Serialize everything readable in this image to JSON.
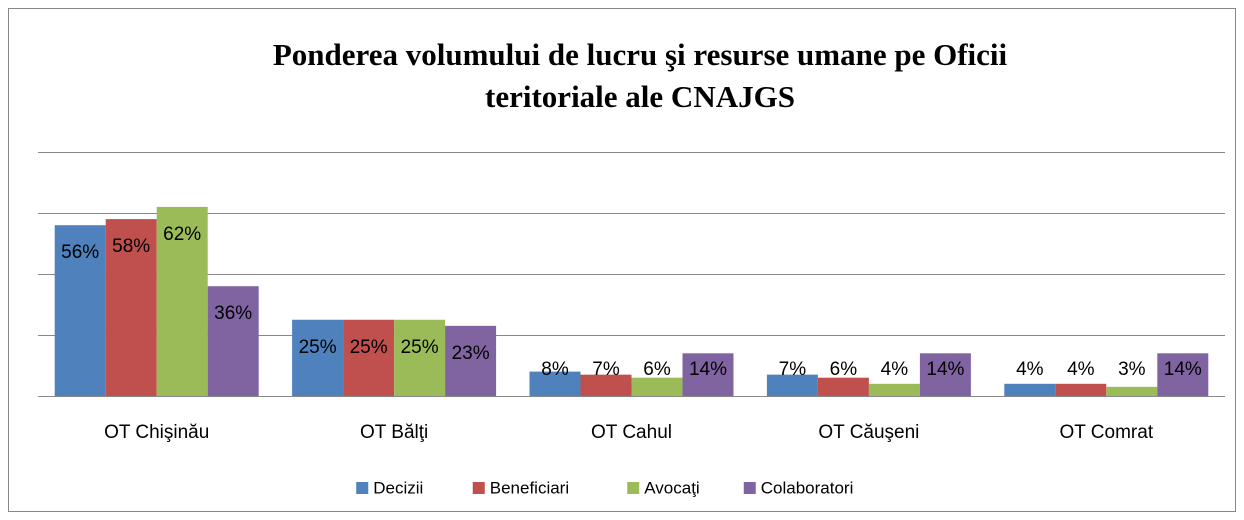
{
  "chart_data": {
    "type": "bar",
    "title": [
      "Ponderea volumului de lucru şi resurse umane pe Oficii",
      "teritoriale ale CNAJGS"
    ],
    "categories": [
      "OT Chişinău",
      "OT Bălţi",
      "OT Cahul",
      "OT Căuşeni",
      "OT Comrat"
    ],
    "series": [
      {
        "name": "Decizii",
        "color": "#4f81bd",
        "values": [
          56,
          25,
          8,
          7,
          4
        ],
        "value_labels": [
          "56%",
          "25%",
          "8%",
          "7%",
          "4%"
        ]
      },
      {
        "name": "Beneficiari",
        "color": "#c0504d",
        "values": [
          58,
          25,
          7,
          6,
          4
        ],
        "value_labels": [
          "58%",
          "25%",
          "7%",
          "6%",
          "4%"
        ]
      },
      {
        "name": "Avocaţi",
        "color": "#9bbb59",
        "values": [
          62,
          25,
          6,
          4,
          3
        ],
        "value_labels": [
          "62%",
          "25%",
          "6%",
          "4%",
          "3%"
        ]
      },
      {
        "name": "Colaboratori",
        "color": "#8064a2",
        "values": [
          36,
          23,
          14,
          14,
          14
        ],
        "value_labels": [
          "36%",
          "23%",
          "14%",
          "14%",
          "14%"
        ]
      }
    ],
    "ylim": [
      0,
      80
    ],
    "yticks": [
      0,
      20,
      40,
      60,
      80
    ],
    "grid": true,
    "legend": "bottom"
  }
}
